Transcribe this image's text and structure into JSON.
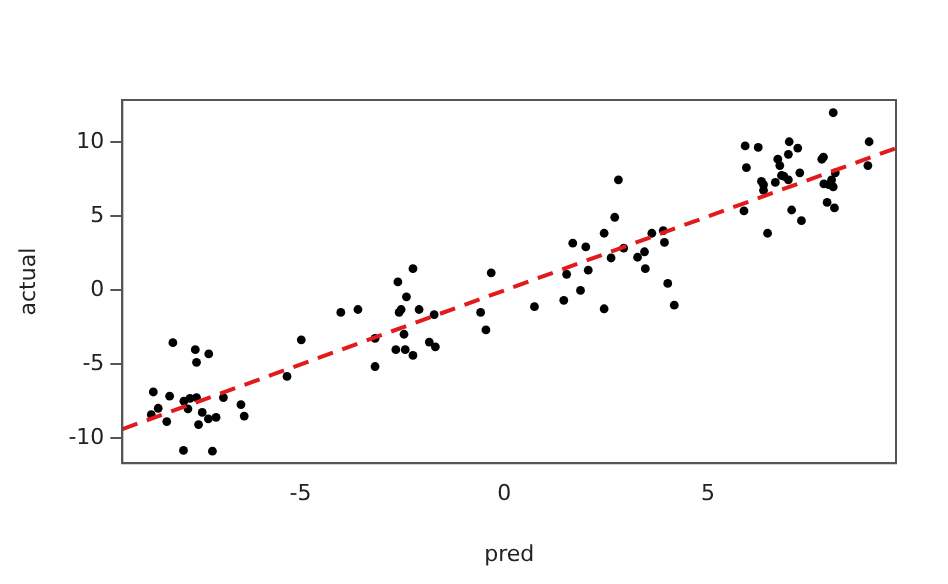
{
  "chart_data": {
    "type": "scatter",
    "xlabel": "pred",
    "ylabel": "actual",
    "xlim": [
      -9.37,
      9.61
    ],
    "ylim": [
      -11.67,
      12.86
    ],
    "xticks": [
      -5,
      0,
      5
    ],
    "yticks": [
      -10,
      -5,
      0,
      5,
      10
    ],
    "marker": "circle",
    "series": [
      {
        "type": "scatter",
        "color": "#000000",
        "x": [
          -8.66,
          -8.61,
          -8.49,
          -8.28,
          -8.21,
          -8.13,
          -7.87,
          -7.86,
          -7.76,
          -7.71,
          -7.58,
          -7.55,
          -7.55,
          -7.5,
          -7.41,
          -7.25,
          -7.26,
          -7.16,
          -7.07,
          -6.89,
          -6.46,
          -6.38,
          -5.33,
          -4.98,
          -4.01,
          -3.59,
          -3.17,
          -3.17,
          -2.66,
          -2.61,
          -2.58,
          -2.53,
          -2.46,
          -2.43,
          -2.4,
          -2.24,
          -2.24,
          -2.09,
          -1.84,
          -1.72,
          -1.69,
          -0.58,
          -0.45,
          -0.32,
          0.74,
          1.46,
          1.53,
          1.68,
          1.87,
          2.0,
          2.06,
          2.45,
          2.45,
          2.62,
          2.71,
          2.8,
          2.93,
          3.27,
          3.44,
          3.46,
          3.62,
          3.9,
          3.93,
          4.01,
          4.17,
          5.88,
          5.91,
          5.94,
          6.23,
          6.31,
          6.36,
          6.36,
          6.46,
          6.65,
          6.71,
          6.76,
          6.8,
          6.86,
          6.97,
          6.97,
          6.99,
          7.05,
          7.2,
          7.25,
          7.29,
          7.79,
          7.83,
          7.84,
          7.92,
          7.96,
          8.03,
          8.07,
          8.07,
          8.1,
          8.12,
          8.92,
          8.95
        ],
        "values": [
          -8.39,
          -6.86,
          -7.96,
          -8.86,
          -7.14,
          -3.53,
          -10.81,
          -7.48,
          -8.0,
          -7.29,
          -4.0,
          -4.86,
          -7.24,
          -9.06,
          -8.24,
          -4.29,
          -8.67,
          -10.86,
          -8.57,
          -7.24,
          -7.71,
          -8.49,
          -5.81,
          -3.34,
          -1.49,
          -1.29,
          -3.24,
          -5.14,
          -4.0,
          0.57,
          -1.49,
          -1.29,
          -2.96,
          -4.0,
          -0.43,
          1.47,
          -4.39,
          -1.29,
          -3.49,
          -1.63,
          -3.81,
          -1.49,
          -2.67,
          1.19,
          -1.1,
          -0.67,
          1.09,
          3.19,
          0.0,
          2.94,
          1.37,
          3.86,
          -1.24,
          2.19,
          4.94,
          7.47,
          2.86,
          2.24,
          2.61,
          1.47,
          3.86,
          4.04,
          3.24,
          0.47,
          -1.0,
          5.37,
          9.76,
          8.29,
          9.66,
          7.37,
          7.14,
          6.76,
          3.86,
          7.29,
          8.86,
          8.43,
          7.76,
          7.71,
          9.19,
          7.47,
          10.04,
          5.43,
          9.61,
          7.94,
          4.71,
          8.86,
          9.0,
          7.19,
          5.94,
          7.14,
          7.47,
          12.0,
          7.0,
          5.57,
          7.94,
          8.43,
          10.04
        ]
      },
      {
        "type": "line",
        "color": "#e31a1c",
        "line_style": "dashed",
        "marker": "none",
        "x": [
          -9.37,
          9.61
        ],
        "values": [
          -9.37,
          9.61
        ]
      }
    ]
  }
}
